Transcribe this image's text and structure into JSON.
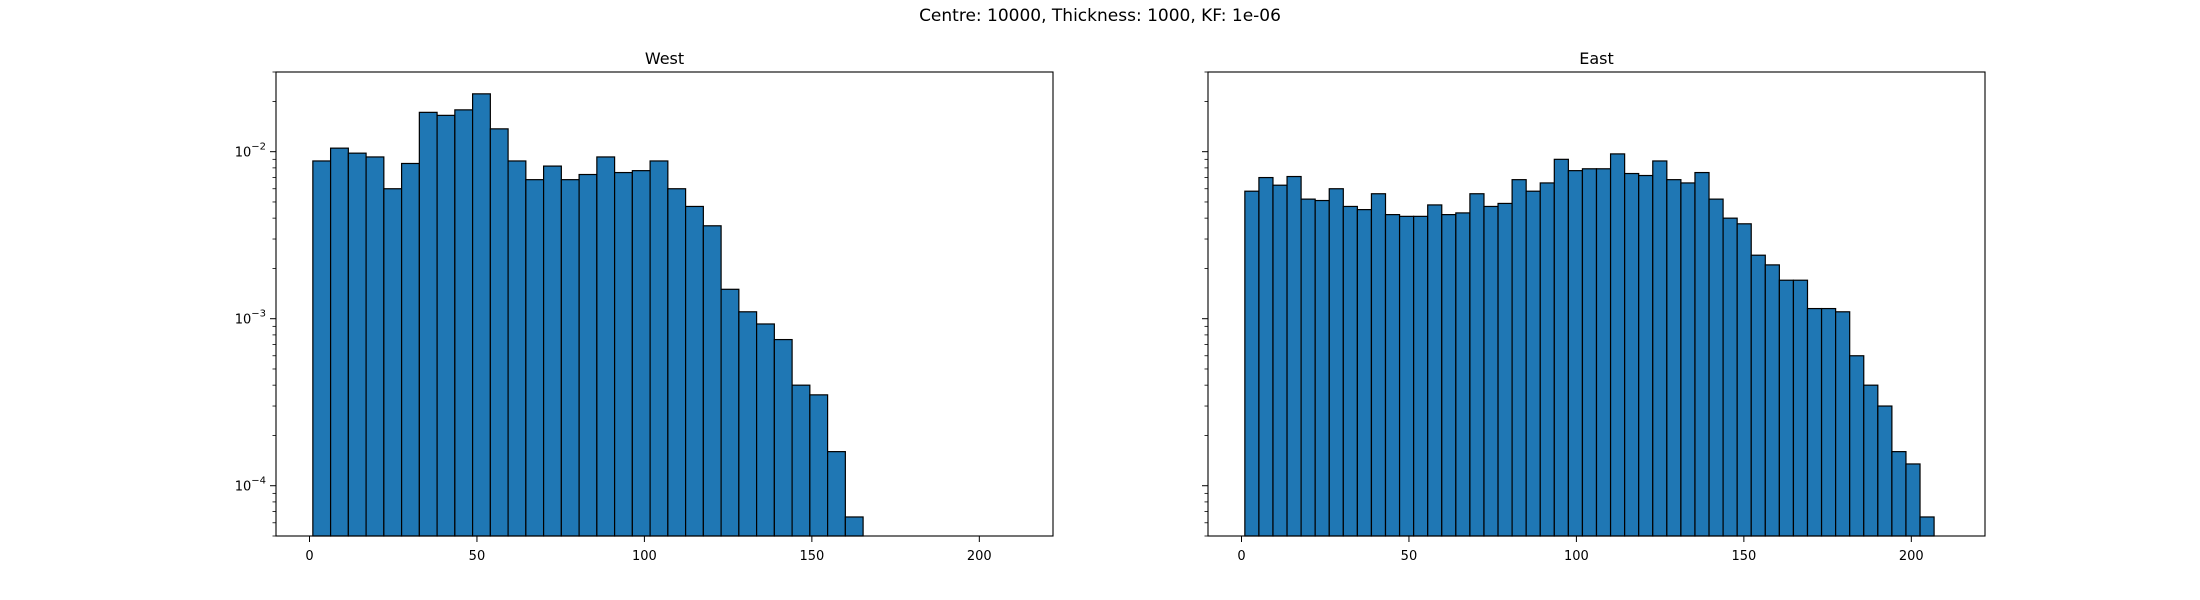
{
  "figure": {
    "suptitle": "Centre: 10000, Thickness: 1000, KF: 1e-06"
  },
  "chart_data": [
    {
      "type": "bar",
      "title": "West",
      "xlabel": "",
      "ylabel": "",
      "yscale": "log",
      "xlim": [
        -10,
        222
      ],
      "ylim": [
        5e-05,
        0.03
      ],
      "grid": false,
      "bar_color": "#1f77b4",
      "edge_color": "#000000",
      "xticks": [
        0,
        50,
        100,
        150,
        200
      ],
      "xtick_labels": [
        "0",
        "50",
        "100",
        "150",
        "200"
      ],
      "yticks": [
        0.0001,
        0.001,
        0.01
      ],
      "ytick_labels": [
        "10^-4",
        "10^-3",
        "10^-2"
      ],
      "bin_start": 1,
      "bin_width": 5.3,
      "values": [
        0.0088,
        0.0105,
        0.0098,
        0.0093,
        0.006,
        0.0085,
        0.0172,
        0.0165,
        0.0178,
        0.0222,
        0.0137,
        0.0088,
        0.0068,
        0.0082,
        0.0068,
        0.0073,
        0.0093,
        0.0075,
        0.0077,
        0.0088,
        0.006,
        0.0047,
        0.0036,
        0.0015,
        0.0011,
        0.00093,
        0.00075,
        0.0004,
        0.00035,
        0.00016,
        6.5e-05
      ]
    },
    {
      "type": "bar",
      "title": "East",
      "xlabel": "",
      "ylabel": "",
      "yscale": "log",
      "xlim": [
        -10,
        222
      ],
      "ylim": [
        5e-05,
        0.03
      ],
      "grid": false,
      "bar_color": "#1f77b4",
      "edge_color": "#000000",
      "xticks": [
        0,
        50,
        100,
        150,
        200
      ],
      "xtick_labels": [
        "0",
        "50",
        "100",
        "150",
        "200"
      ],
      "yticks": [
        0.0001,
        0.001,
        0.01
      ],
      "ytick_labels": [
        "",
        "",
        ""
      ],
      "bin_start": 1,
      "bin_width": 4.2,
      "values": [
        0.0058,
        0.007,
        0.0063,
        0.0071,
        0.0052,
        0.0051,
        0.006,
        0.0047,
        0.0045,
        0.0056,
        0.0042,
        0.0041,
        0.0041,
        0.0048,
        0.0042,
        0.0043,
        0.0056,
        0.0047,
        0.0049,
        0.0068,
        0.0058,
        0.0065,
        0.009,
        0.0077,
        0.0079,
        0.0079,
        0.0097,
        0.0074,
        0.0072,
        0.0088,
        0.0068,
        0.0065,
        0.0075,
        0.0052,
        0.004,
        0.0037,
        0.0024,
        0.0021,
        0.0017,
        0.0017,
        0.00115,
        0.00115,
        0.0011,
        0.0006,
        0.0004,
        0.0003,
        0.00016,
        0.000135,
        6.5e-05
      ]
    }
  ]
}
